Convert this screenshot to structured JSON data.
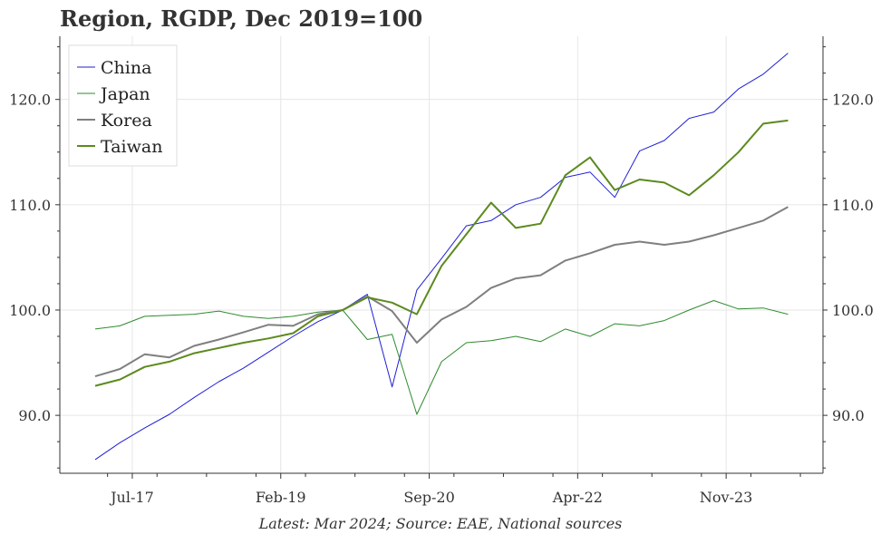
{
  "chart_data": {
    "type": "line",
    "title": "Region, RGDP, Dec 2019=100",
    "source_note": "Latest: Mar 2024; Source: EAE, National sources",
    "x": [
      "2017Q1",
      "2017Q2",
      "2017Q3",
      "2017Q4",
      "2018Q1",
      "2018Q2",
      "2018Q3",
      "2018Q4",
      "2019Q1",
      "2019Q2",
      "2019Q3",
      "2019Q4",
      "2020Q1",
      "2020Q2",
      "2020Q3",
      "2020Q4",
      "2021Q1",
      "2021Q2",
      "2021Q3",
      "2021Q4",
      "2022Q1",
      "2022Q2",
      "2022Q3",
      "2022Q4",
      "2023Q1",
      "2023Q2",
      "2023Q3",
      "2023Q4",
      "2024Q1"
    ],
    "x_tick_labels": [
      {
        "label": "Jul-17",
        "index": 1.5
      },
      {
        "label": "Feb-19",
        "index": 7.5
      },
      {
        "label": "Sep-20",
        "index": 13.5
      },
      {
        "label": "Apr-22",
        "index": 19.5
      },
      {
        "label": "Nov-23",
        "index": 25.5
      }
    ],
    "y_ticks": [
      90,
      100,
      110,
      120
    ],
    "y_tick_labels": [
      "90.0",
      "100.0",
      "110.0",
      "120.0"
    ],
    "ylim": [
      84.5,
      126
    ],
    "grid": true,
    "legend_position": "top-left",
    "series": [
      {
        "name": "China",
        "color": "#1f1fd6",
        "width": 1,
        "values": [
          85.8,
          87.4,
          88.8,
          90.1,
          91.7,
          93.2,
          94.5,
          96.0,
          97.5,
          98.9,
          100.0,
          101.5,
          92.7,
          101.9,
          104.9,
          108.0,
          108.5,
          110.0,
          110.7,
          112.6,
          113.1,
          110.7,
          115.1,
          116.1,
          118.2,
          118.8,
          121.0,
          122.4,
          124.4
        ]
      },
      {
        "name": "Japan",
        "color": "#2e8b2e",
        "width": 1,
        "values": [
          98.2,
          98.5,
          99.4,
          99.5,
          99.6,
          99.9,
          99.4,
          99.2,
          99.4,
          99.8,
          100.0,
          97.2,
          97.7,
          90.1,
          95.1,
          96.9,
          97.1,
          97.5,
          97.0,
          98.2,
          97.5,
          98.7,
          98.5,
          99.0,
          100.0,
          100.9,
          100.1,
          100.2,
          99.6
        ]
      },
      {
        "name": "Korea",
        "color": "#7f7f7f",
        "width": 2,
        "values": [
          93.7,
          94.4,
          95.8,
          95.5,
          96.6,
          97.2,
          97.9,
          98.6,
          98.5,
          99.6,
          100.0,
          101.3,
          99.9,
          96.9,
          99.1,
          100.3,
          102.1,
          103.0,
          103.3,
          104.7,
          105.4,
          106.2,
          106.5,
          106.2,
          106.5,
          107.1,
          107.8,
          108.5,
          109.8
        ]
      },
      {
        "name": "Taiwan",
        "color": "#5c8a1e",
        "width": 2,
        "values": [
          92.8,
          93.4,
          94.6,
          95.1,
          95.9,
          96.4,
          96.9,
          97.3,
          97.8,
          99.4,
          100.0,
          101.2,
          100.7,
          99.6,
          104.2,
          107.2,
          110.2,
          107.8,
          108.2,
          112.8,
          114.5,
          111.4,
          112.4,
          112.1,
          110.9,
          112.8,
          115.0,
          117.7,
          118.0
        ]
      }
    ]
  }
}
